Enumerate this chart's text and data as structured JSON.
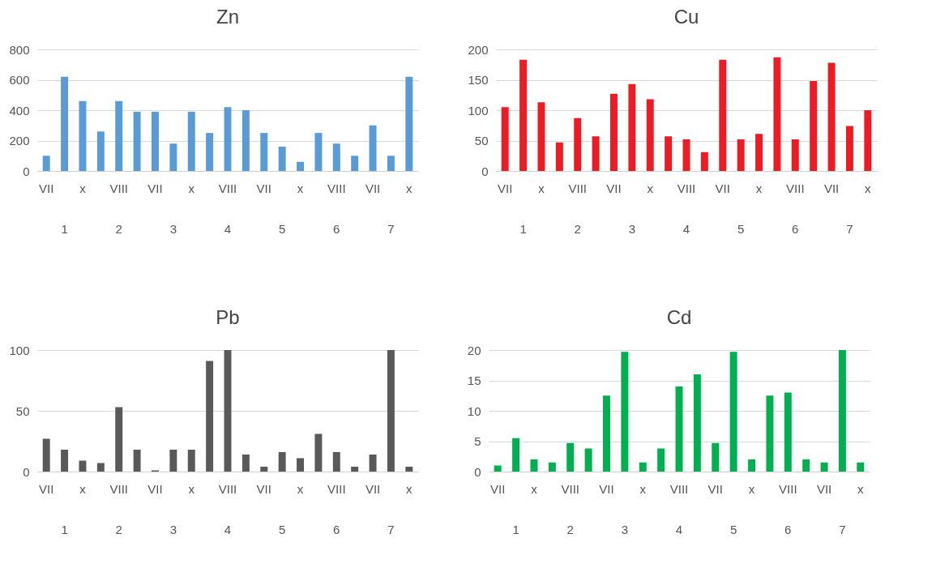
{
  "chart_data": [
    {
      "type": "bar",
      "title": "Zn",
      "categories": [
        "VII",
        null,
        "x",
        null,
        "VIII",
        null,
        "VII",
        null,
        "x",
        null,
        "VIII",
        null,
        "VII",
        null,
        "x",
        null,
        "VIII",
        null,
        "VII",
        null,
        "x"
      ],
      "values": [
        100,
        620,
        460,
        260,
        460,
        390,
        390,
        180,
        390,
        250,
        420,
        400,
        250,
        160,
        60,
        250,
        180,
        100,
        300,
        100,
        620
      ],
      "color": "#5b9bd5",
      "ylim": [
        0,
        800
      ],
      "yticks": [
        0,
        200,
        400,
        600,
        800
      ],
      "grid": "y",
      "annotations": [
        "1",
        "2",
        "3",
        "4",
        "5",
        "6",
        "7"
      ]
    },
    {
      "type": "bar",
      "title": "Cu",
      "categories": [
        "VII",
        null,
        "x",
        null,
        "VIII",
        null,
        "VII",
        null,
        "x",
        null,
        "VIII",
        null,
        "VII",
        null,
        "x",
        null,
        "VIII",
        null,
        "VII",
        null,
        "x"
      ],
      "values": [
        105,
        183,
        113,
        47,
        87,
        57,
        127,
        143,
        118,
        57,
        52,
        31,
        183,
        52,
        61,
        187,
        52,
        148,
        178,
        74,
        100
      ],
      "color": "#ed1c24",
      "ylim": [
        0,
        200
      ],
      "yticks": [
        0,
        50,
        100,
        150,
        200
      ],
      "grid": "y",
      "annotations": [
        "1",
        "2",
        "3",
        "4",
        "5",
        "6",
        "7"
      ]
    },
    {
      "type": "bar",
      "title": "Pb",
      "categories": [
        "VII",
        null,
        "x",
        null,
        "VIII",
        null,
        "VII",
        null,
        "x",
        null,
        "VIII",
        null,
        "VII",
        null,
        "x",
        null,
        "VIII",
        null,
        "VII",
        null,
        "x"
      ],
      "values": [
        27,
        18,
        9,
        7,
        53,
        18,
        1,
        18,
        18,
        91,
        100,
        14,
        4,
        16,
        11,
        31,
        16,
        4,
        14,
        100,
        4
      ],
      "color": "#595959",
      "ylim": [
        0,
        100
      ],
      "yticks": [
        0,
        50,
        100
      ],
      "grid": "y",
      "annotations": [
        "1",
        "2",
        "3",
        "4",
        "5",
        "6",
        "7"
      ]
    },
    {
      "type": "bar",
      "title": "Cd",
      "categories": [
        "VII",
        null,
        "x",
        null,
        "VIII",
        null,
        "VII",
        null,
        "x",
        null,
        "VIII",
        null,
        "VII",
        null,
        "x",
        null,
        "VIII",
        null,
        "VII",
        null,
        "x"
      ],
      "values": [
        1,
        5.5,
        2,
        1.5,
        4.7,
        3.8,
        12.5,
        19.7,
        1.5,
        3.8,
        14,
        16,
        4.7,
        19.7,
        2,
        12.5,
        13,
        2,
        1.5,
        20,
        1.5
      ],
      "color": "#00b050",
      "ylim": [
        0,
        20
      ],
      "yticks": [
        0,
        5,
        10,
        15,
        20
      ],
      "grid": "y",
      "annotations": [
        "1",
        "2",
        "3",
        "4",
        "5",
        "6",
        "7"
      ]
    }
  ]
}
